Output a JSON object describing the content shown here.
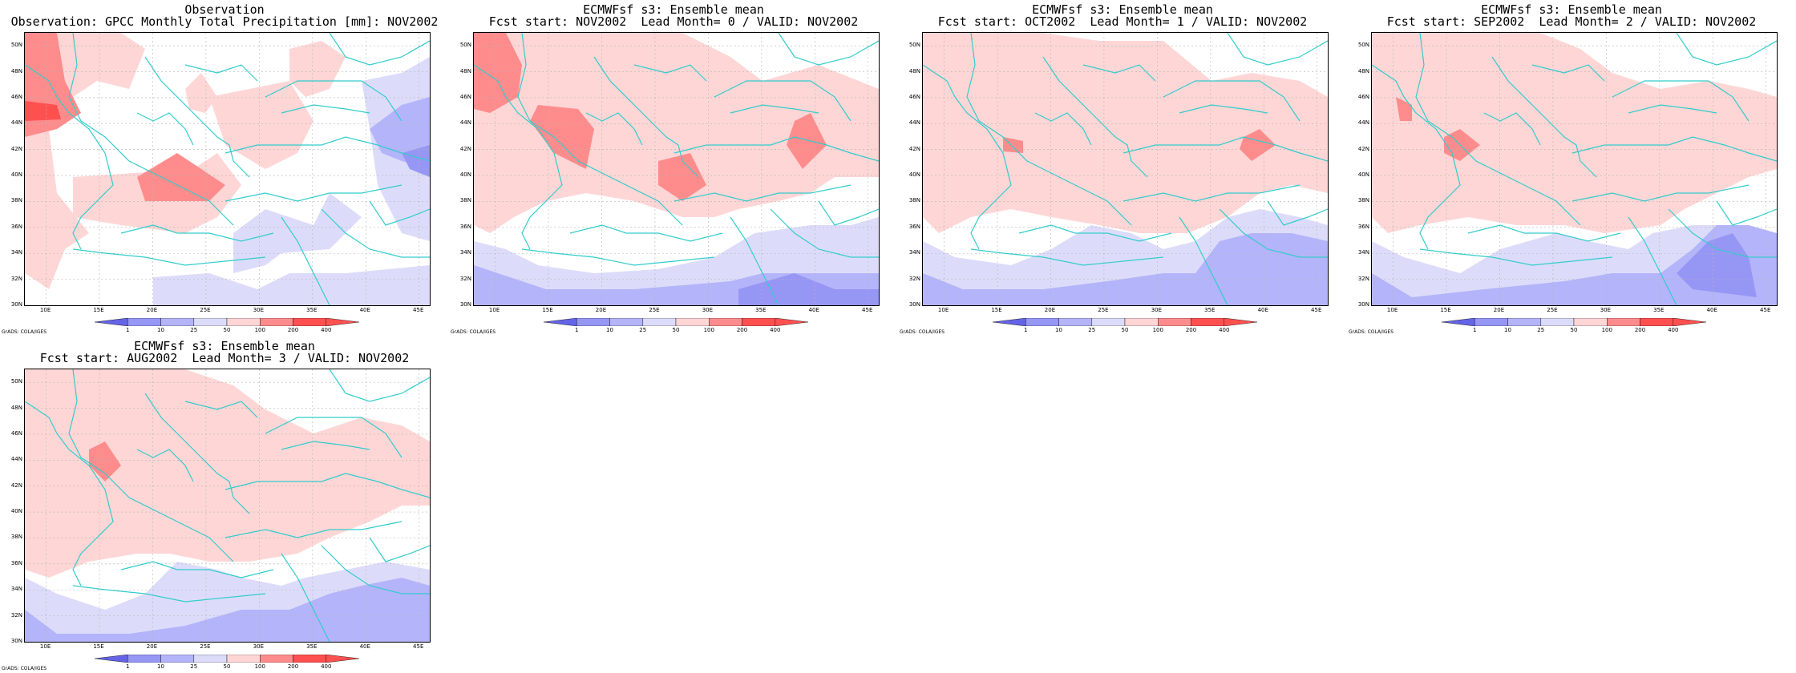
{
  "colors": {
    "coast": "#33cccc",
    "grid": "#b4b4b4",
    "red_light": "#ffd6d6",
    "red_mid": "#ff8c8c",
    "red_dark": "#ff5050",
    "blue_light": "#dcdcfa",
    "blue_mid": "#b4b4fa",
    "blue_dark": "#9696f5",
    "blue_deep": "#6464e6"
  },
  "map": {
    "lat_labels": [
      "30N",
      "32N",
      "34N",
      "36N",
      "38N",
      "40N",
      "42N",
      "44N",
      "46N",
      "48N",
      "50N"
    ],
    "lon_labels": [
      "10E",
      "15E",
      "20E",
      "25E",
      "30E",
      "35E",
      "40E",
      "45E"
    ],
    "lat_range": [
      30,
      51
    ],
    "lon_range": [
      8,
      46
    ]
  },
  "colorbar": {
    "labels": [
      "1",
      "10",
      "25",
      "50",
      "100",
      "200",
      "400"
    ]
  },
  "credit": "GrADS: COLA/IGES",
  "panels": [
    {
      "title1": "Observation",
      "title2": "Observation: GPCC Monthly Total Precipitation [mm]: NOV2002",
      "field": "obs"
    },
    {
      "title1": "ECMWFsf s3: Ensemble mean",
      "title2": "Fcst start: NOV2002  Lead Month= 0 / VALID: NOV2002",
      "field": "lead0"
    },
    {
      "title1": "ECMWFsf s3: Ensemble mean",
      "title2": "Fcst start: OCT2002  Lead Month= 1 / VALID: NOV2002",
      "field": "lead1"
    },
    {
      "title1": "ECMWFsf s3: Ensemble mean",
      "title2": "Fcst start: SEP2002  Lead Month= 2 / VALID: NOV2002",
      "field": "lead2"
    },
    {
      "title1": "ECMWFsf s3: Ensemble mean",
      "title2": "Fcst start: AUG2002  Lead Month= 3 / VALID: NOV2002",
      "field": "lead3"
    }
  ]
}
